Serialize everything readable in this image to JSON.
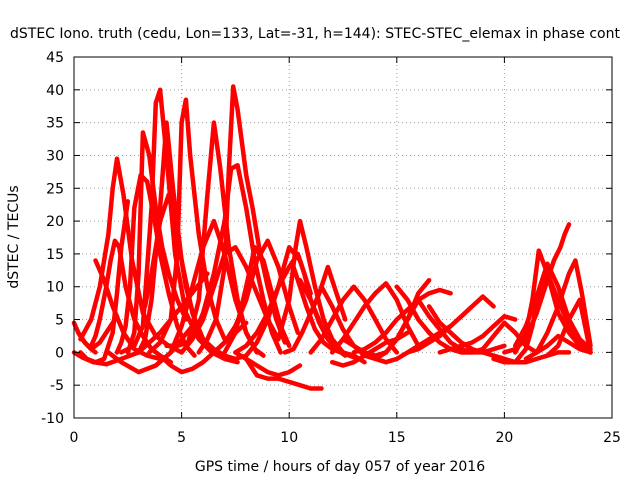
{
  "chart_data": {
    "type": "line",
    "title": "dSTEC Iono. truth (cedu, Lon=133, Lat=-31, h=144): STEC-STEC_elemax in phase cont",
    "xlabel": "GPS time / hours of day 057 of year 2016",
    "ylabel": "dSTEC  / TECUs",
    "xlim": [
      0,
      25
    ],
    "ylim": [
      -10,
      45
    ],
    "xticks": [
      "0",
      "5",
      "10",
      "15",
      "20",
      "25"
    ],
    "yticks": [
      "-10",
      "-5",
      "0",
      "5",
      "10",
      "15",
      "20",
      "25",
      "30",
      "35",
      "40",
      "45"
    ],
    "grid": true,
    "legend": "none",
    "colors": {
      "series": "#ff0000"
    },
    "marker": "plus",
    "series": [
      {
        "x": [
          0.0,
          0.2,
          0.5,
          0.8,
          1.0
        ],
        "y": [
          4.5,
          3.0,
          1.5,
          0.5,
          0.0
        ]
      },
      {
        "x": [
          0.0,
          0.4,
          0.9,
          1.5,
          2.2,
          3.0,
          4.0,
          5.0,
          6.2
        ],
        "y": [
          0.0,
          -0.8,
          -1.5,
          -1.8,
          -1.0,
          0.0,
          3.0,
          7.0,
          12.0
        ]
      },
      {
        "x": [
          0.2,
          0.5,
          0.8,
          1.2,
          1.6,
          2.0
        ],
        "y": [
          3.0,
          1.5,
          0.5,
          1.5,
          3.5,
          5.5
        ]
      },
      {
        "x": [
          0.3,
          0.6,
          1.0,
          1.4,
          1.8,
          2.0,
          2.2,
          2.5
        ],
        "y": [
          0.0,
          -1.0,
          -1.5,
          -1.0,
          3.0,
          9.0,
          16.0,
          23.0
        ]
      },
      {
        "x": [
          0.3,
          0.8,
          1.2,
          1.6,
          1.8,
          2.0,
          2.3,
          2.7,
          3.2,
          3.8,
          4.4,
          5.0
        ],
        "y": [
          2.0,
          5.0,
          10.0,
          18.0,
          25.0,
          29.5,
          24.0,
          14.0,
          6.0,
          2.5,
          1.0,
          0.0
        ]
      },
      {
        "x": [
          0.8,
          1.0,
          1.2,
          1.5,
          1.7,
          1.9,
          2.1,
          2.4,
          2.8,
          3.2,
          3.6,
          4.0,
          4.5
        ],
        "y": [
          1.0,
          2.5,
          5.0,
          10.0,
          14.0,
          17.0,
          16.0,
          10.0,
          5.0,
          2.5,
          0.5,
          -0.5,
          -1.5
        ]
      },
      {
        "x": [
          1.0,
          1.4,
          1.8,
          2.3,
          2.8,
          3.4,
          4.0
        ],
        "y": [
          14.0,
          11.0,
          7.0,
          3.0,
          0.5,
          -0.5,
          -1.0
        ]
      },
      {
        "x": [
          1.6,
          2.2,
          3.0,
          3.8,
          4.5,
          5.0,
          5.5
        ],
        "y": [
          0.0,
          -1.5,
          -3.0,
          -2.0,
          0.0,
          2.0,
          4.0
        ]
      },
      {
        "x": [
          2.0,
          2.2,
          2.4,
          2.6,
          2.8,
          3.1,
          3.4,
          3.7,
          4.0,
          4.4,
          4.8,
          5.2,
          5.6
        ],
        "y": [
          0.0,
          1.5,
          4.0,
          10.0,
          22.0,
          27.0,
          26.0,
          21.0,
          15.0,
          9.0,
          4.0,
          1.0,
          -0.5
        ]
      },
      {
        "x": [
          2.2,
          2.8,
          3.2,
          3.6,
          3.8,
          4.0,
          4.3,
          4.7,
          5.2,
          5.8,
          6.4,
          7.0,
          7.6
        ],
        "y": [
          0.0,
          1.0,
          4.0,
          22.0,
          38.0,
          40.0,
          30.0,
          15.0,
          6.0,
          2.0,
          0.0,
          -1.0,
          -1.5
        ]
      },
      {
        "x": [
          2.5,
          2.8,
          3.0,
          3.2,
          3.5,
          3.8,
          4.1,
          4.4,
          4.8,
          5.2
        ],
        "y": [
          0.0,
          3.0,
          12.0,
          33.5,
          30.0,
          22.0,
          16.0,
          12.0,
          8.0,
          5.0
        ]
      },
      {
        "x": [
          3.0,
          3.3,
          3.6,
          4.0,
          4.3,
          4.6,
          5.0,
          5.5,
          6.0,
          6.5
        ],
        "y": [
          0.0,
          2.0,
          8.0,
          22.0,
          35.0,
          25.0,
          14.0,
          6.0,
          2.0,
          0.0
        ]
      },
      {
        "x": [
          3.3,
          3.6,
          4.0,
          4.4,
          4.8,
          5.2,
          5.6,
          6.0
        ],
        "y": [
          7.0,
          12.0,
          20.0,
          24.0,
          18.0,
          10.0,
          5.0,
          2.0
        ]
      },
      {
        "x": [
          3.5,
          4.0,
          4.5,
          4.8,
          5.0,
          5.2,
          5.4,
          5.8,
          6.2,
          6.6,
          7.0
        ],
        "y": [
          0.0,
          1.5,
          5.0,
          15.0,
          35.0,
          38.5,
          30.0,
          18.0,
          10.0,
          5.0,
          2.0
        ]
      },
      {
        "x": [
          4.0,
          4.5,
          5.0,
          5.5,
          6.0,
          6.5,
          7.0,
          7.5,
          8.0
        ],
        "y": [
          -0.5,
          -2.0,
          -3.0,
          -2.5,
          -1.5,
          0.0,
          1.5,
          3.0,
          4.5
        ]
      },
      {
        "x": [
          4.3,
          4.8,
          5.3,
          5.8,
          6.2,
          6.5,
          6.8,
          7.2,
          7.6,
          8.0,
          8.4,
          8.8
        ],
        "y": [
          1.0,
          1.0,
          1.5,
          8.0,
          24.0,
          35.0,
          28.0,
          16.0,
          8.0,
          3.0,
          0.5,
          -0.5
        ]
      },
      {
        "x": [
          4.5,
          5.0,
          5.5,
          6.0,
          6.5,
          7.0,
          7.5,
          8.0,
          8.5
        ],
        "y": [
          0.0,
          4.0,
          10.0,
          16.0,
          20.0,
          15.0,
          8.0,
          3.0,
          0.0
        ]
      },
      {
        "x": [
          5.0,
          5.5,
          6.0,
          6.5,
          7.0,
          7.3,
          7.6,
          8.0,
          8.4,
          8.8,
          9.2,
          9.6
        ],
        "y": [
          0.0,
          2.0,
          6.0,
          12.0,
          20.0,
          28.0,
          28.5,
          22.0,
          14.0,
          8.0,
          3.0,
          0.0
        ]
      },
      {
        "x": [
          5.5,
          6.0,
          6.5,
          7.0,
          7.5,
          8.0,
          8.5,
          9.0,
          9.5
        ],
        "y": [
          2.0,
          5.0,
          10.0,
          15.0,
          16.0,
          13.0,
          9.0,
          5.0,
          2.0
        ]
      },
      {
        "x": [
          5.8,
          6.2,
          6.6,
          7.0,
          7.2,
          7.4,
          7.6,
          7.8,
          8.0,
          8.3,
          8.6,
          9.0,
          9.4,
          9.8
        ],
        "y": [
          0.0,
          2.0,
          5.0,
          13.0,
          28.0,
          40.5,
          37.0,
          32.0,
          27.0,
          22.0,
          16.0,
          10.0,
          5.0,
          1.5
        ]
      },
      {
        "x": [
          6.0,
          6.5,
          7.0,
          7.5,
          8.0,
          8.5,
          9.0,
          9.5,
          10.0,
          10.5,
          11.0
        ],
        "y": [
          2.0,
          0.5,
          -0.5,
          -1.0,
          -0.5,
          1.5,
          5.0,
          10.0,
          16.0,
          14.0,
          9.0
        ]
      },
      {
        "x": [
          6.5,
          7.0,
          7.5,
          8.0,
          8.5,
          9.0,
          9.5,
          10.0,
          10.4
        ],
        "y": [
          0.0,
          1.5,
          4.0,
          8.0,
          14.0,
          17.0,
          13.0,
          7.0,
          3.0
        ]
      },
      {
        "x": [
          7.0,
          7.5,
          8.0,
          8.4,
          8.8,
          9.2,
          9.6,
          10.0
        ],
        "y": [
          0.0,
          3.0,
          10.0,
          16.0,
          14.0,
          9.0,
          4.0,
          1.0
        ]
      },
      {
        "x": [
          7.5,
          8.0,
          8.5,
          9.0,
          9.5,
          10.0,
          10.5
        ],
        "y": [
          0.0,
          -1.0,
          -2.0,
          -3.0,
          -3.5,
          -3.0,
          -2.0
        ]
      },
      {
        "x": [
          7.5,
          8.0,
          8.5,
          9.0,
          9.5,
          10.0,
          10.4,
          10.7,
          11.0,
          11.4,
          11.8,
          12.2,
          12.6
        ],
        "y": [
          0.0,
          1.0,
          3.0,
          6.0,
          10.0,
          13.0,
          15.0,
          12.0,
          8.0,
          4.5,
          2.0,
          0.5,
          -0.5
        ]
      },
      {
        "x": [
          8.0,
          8.5,
          9.0,
          9.5,
          10.0,
          10.5,
          11.0,
          11.5
        ],
        "y": [
          -1.0,
          -3.5,
          -4.0,
          -4.0,
          -4.5,
          -5.0,
          -5.5,
          -5.5
        ]
      },
      {
        "x": [
          9.5,
          10.0,
          10.3,
          10.5,
          10.8,
          11.2,
          11.6,
          12.0,
          12.5
        ],
        "y": [
          2.0,
          8.0,
          16.0,
          20.0,
          16.0,
          10.0,
          5.0,
          2.0,
          0.0
        ]
      },
      {
        "x": [
          9.8,
          10.2,
          10.6,
          11.0,
          11.4,
          11.8,
          12.2,
          12.6
        ],
        "y": [
          0.0,
          0.5,
          3.0,
          6.0,
          9.0,
          13.0,
          9.0,
          5.0
        ]
      },
      {
        "x": [
          10.2,
          10.5,
          10.8,
          11.2,
          11.6,
          12.0,
          12.4,
          12.8,
          13.2
        ],
        "y": [
          13.0,
          10.0,
          7.0,
          3.5,
          1.5,
          0.5,
          0.0,
          -0.5,
          -1.0
        ]
      },
      {
        "x": [
          10.5,
          11.0,
          11.5,
          12.0,
          12.5,
          13.0,
          13.5
        ],
        "y": [
          11.0,
          8.0,
          4.0,
          1.5,
          0.0,
          -0.5,
          -1.5
        ]
      },
      {
        "x": [
          11.0,
          11.5,
          12.0,
          12.5,
          13.0,
          13.5,
          14.0,
          14.5,
          15.0
        ],
        "y": [
          0.0,
          2.0,
          5.0,
          8.0,
          10.0,
          8.0,
          5.0,
          2.0,
          0.0
        ]
      },
      {
        "x": [
          11.5,
          12.0,
          12.5,
          13.0,
          13.5,
          14.0,
          14.5,
          15.0,
          15.5,
          16.0
        ],
        "y": [
          10.0,
          7.0,
          3.5,
          1.0,
          -0.5,
          -1.0,
          0.0,
          2.0,
          5.0,
          8.0
        ]
      },
      {
        "x": [
          12.0,
          12.5,
          13.0,
          13.5,
          14.0,
          14.5,
          15.0,
          15.5,
          16.0
        ],
        "y": [
          0.0,
          2.0,
          4.5,
          7.0,
          9.0,
          10.5,
          8.0,
          4.0,
          1.0
        ]
      },
      {
        "x": [
          12.0,
          12.5,
          13.0,
          13.5,
          14.0,
          14.5,
          15.0,
          15.5
        ],
        "y": [
          -1.5,
          -2.0,
          -1.5,
          -0.5,
          0.5,
          1.5,
          2.0,
          3.0
        ]
      },
      {
        "x": [
          12.5,
          13.0,
          13.5,
          14.0,
          14.5,
          15.0,
          15.5,
          16.0,
          16.5
        ],
        "y": [
          2.0,
          1.0,
          0.0,
          -0.5,
          0.0,
          2.0,
          5.0,
          9.0,
          11.0
        ]
      },
      {
        "x": [
          13.0,
          13.5,
          14.0,
          14.5,
          15.0,
          15.5,
          16.0,
          16.5,
          17.0,
          17.5
        ],
        "y": [
          0.0,
          0.5,
          1.5,
          3.0,
          5.0,
          6.5,
          8.0,
          9.0,
          9.5,
          9.0
        ]
      },
      {
        "x": [
          14.0,
          14.5,
          15.0,
          15.5,
          16.0,
          16.5,
          17.0,
          17.5
        ],
        "y": [
          -1.0,
          -1.5,
          -1.0,
          0.0,
          1.0,
          2.0,
          3.0,
          4.0
        ]
      },
      {
        "x": [
          15.0,
          15.5,
          16.0,
          16.5,
          17.0,
          17.5,
          18.0,
          18.5,
          19.0
        ],
        "y": [
          10.0,
          8.0,
          5.0,
          3.0,
          1.5,
          0.5,
          0.0,
          0.0,
          0.5
        ]
      },
      {
        "x": [
          15.5,
          16.0,
          16.5,
          17.0,
          17.5,
          18.0,
          18.5,
          19.0,
          19.5
        ],
        "y": [
          0.0,
          0.5,
          1.5,
          2.5,
          4.0,
          5.5,
          7.0,
          8.5,
          7.0
        ]
      },
      {
        "x": [
          16.0,
          16.5,
          17.0,
          17.5,
          18.0,
          18.5,
          19.0,
          19.5,
          20.0
        ],
        "y": [
          8.0,
          5.5,
          3.5,
          1.5,
          0.5,
          0.0,
          0.0,
          0.5,
          1.0
        ]
      },
      {
        "x": [
          16.5,
          17.0,
          17.5,
          18.0,
          18.5,
          19.0,
          19.5,
          20.0
        ],
        "y": [
          7.0,
          4.5,
          3.0,
          1.5,
          0.5,
          0.0,
          -0.5,
          -1.0
        ]
      },
      {
        "x": [
          17.0,
          17.5,
          18.0,
          18.5,
          19.0,
          19.5,
          20.0,
          20.5
        ],
        "y": [
          0.0,
          0.5,
          1.0,
          1.5,
          2.5,
          4.0,
          5.5,
          5.0
        ]
      },
      {
        "x": [
          18.0,
          18.5,
          19.0,
          19.5,
          20.0,
          20.5,
          21.0,
          21.5
        ],
        "y": [
          0.0,
          0.0,
          0.5,
          2.5,
          4.5,
          3.0,
          1.0,
          0.0
        ]
      },
      {
        "x": [
          19.0,
          19.5,
          20.0,
          20.5,
          21.0,
          21.5,
          22.0,
          22.5,
          23.0
        ],
        "y": [
          0.0,
          -0.5,
          -1.0,
          -1.5,
          -1.5,
          -1.0,
          -0.5,
          0.0,
          0.0
        ]
      },
      {
        "x": [
          19.5,
          20.0,
          20.5,
          21.0,
          21.3,
          21.6,
          22.0,
          22.5,
          23.0,
          23.5,
          24.0
        ],
        "y": [
          -1.0,
          -1.5,
          -1.5,
          0.5,
          4.0,
          9.0,
          12.0,
          8.0,
          4.0,
          1.5,
          0.0
        ]
      },
      {
        "x": [
          20.0,
          20.5,
          21.0,
          21.5,
          22.0,
          22.3,
          22.6,
          22.8,
          23.0
        ],
        "y": [
          0.0,
          0.5,
          2.0,
          6.0,
          11.0,
          14.0,
          16.0,
          18.0,
          19.5
        ]
      },
      {
        "x": [
          20.5,
          21.0,
          21.3,
          21.6,
          22.0,
          22.5,
          23.0,
          23.5,
          24.0
        ],
        "y": [
          0.0,
          3.0,
          8.0,
          15.5,
          12.0,
          6.0,
          3.0,
          1.0,
          0.0
        ]
      },
      {
        "x": [
          20.5,
          21.0,
          21.5,
          22.0,
          22.5,
          23.0,
          23.5,
          24.0
        ],
        "y": [
          1.0,
          4.0,
          8.5,
          13.5,
          10.0,
          5.0,
          2.0,
          0.5
        ]
      },
      {
        "x": [
          21.0,
          21.5,
          22.0,
          22.5,
          23.0,
          23.3,
          23.6,
          24.0
        ],
        "y": [
          -1.0,
          0.0,
          3.0,
          7.0,
          12.0,
          14.0,
          9.0,
          1.0
        ]
      },
      {
        "x": [
          22.0,
          22.5,
          23.0,
          23.5,
          24.0
        ],
        "y": [
          -0.5,
          1.0,
          5.0,
          8.0,
          0.0
        ]
      },
      {
        "x": [
          21.5,
          22.0,
          22.5,
          23.0,
          23.5,
          24.0
        ],
        "y": [
          0.0,
          1.0,
          2.5,
          1.5,
          0.5,
          0.0
        ]
      }
    ]
  }
}
